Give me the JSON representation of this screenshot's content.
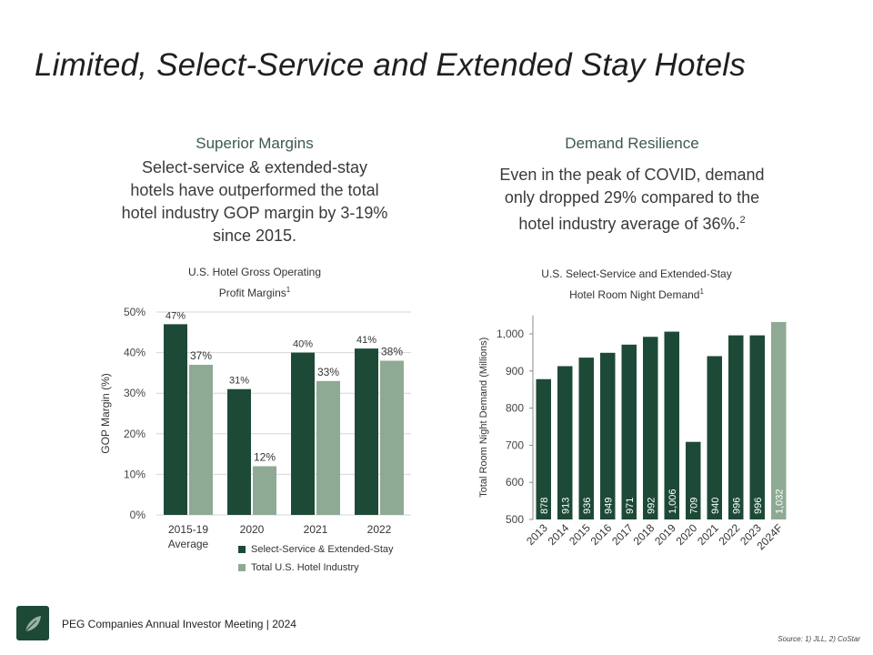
{
  "slide": {
    "title": "Limited, Select-Service and Extended Stay Hotels"
  },
  "left": {
    "heading": "Superior Margins",
    "body": [
      "Select-service & extended-stay",
      "hotels have outperformed the total",
      "hotel industry GOP margin by 3-19%",
      "since 2015."
    ]
  },
  "right": {
    "heading": "Demand Resilience",
    "body": [
      "Even in the peak of COVID, demand",
      "only dropped 29% compared to the",
      "hotel industry average of 36%."
    ],
    "footnote_mark": "2"
  },
  "chart_data": [
    {
      "type": "bar",
      "title_lines": [
        "U.S. Hotel Gross Operating",
        "Profit Margins"
      ],
      "title_footnote": "1",
      "ylabel": "GOP Margin (%)",
      "xlabel": "",
      "ylim": [
        0,
        50
      ],
      "yticks": [
        "0%",
        "10%",
        "20%",
        "30%",
        "40%",
        "50%"
      ],
      "grid": true,
      "categories": [
        [
          "2015-19",
          "Average"
        ],
        [
          "2020"
        ],
        [
          "2021"
        ],
        [
          "2022"
        ]
      ],
      "series": [
        {
          "name": "Select-Service & Extended-Stay",
          "color": "#1d4a37",
          "values": [
            47,
            31,
            40,
            41
          ],
          "labels": [
            "47%",
            "31%",
            "40%",
            "41%"
          ]
        },
        {
          "name": "Total U.S. Hotel Industry",
          "color": "#8faa94",
          "values": [
            37,
            12,
            33,
            38
          ],
          "labels": [
            "37%",
            "12%",
            "33%",
            "38%"
          ]
        }
      ],
      "legend": "bottom"
    },
    {
      "type": "bar",
      "title_lines": [
        "U.S. Select-Service and Extended-Stay",
        "Hotel Room Night Demand"
      ],
      "title_footnote": "1",
      "ylabel": "Total Room Night Demand (Millions)",
      "xlabel": "",
      "ylim": [
        500,
        1050
      ],
      "yticks": [
        "500",
        "600",
        "700",
        "800",
        "900",
        "1,000"
      ],
      "grid": false,
      "categories": [
        "2013",
        "2014",
        "2015",
        "2016",
        "2017",
        "2018",
        "2019",
        "2020",
        "2021",
        "2022",
        "2023",
        "2024F"
      ],
      "values": [
        878,
        913,
        936,
        949,
        971,
        992,
        1006,
        709,
        940,
        996,
        996,
        1032
      ],
      "labels": [
        "878",
        "913",
        "936",
        "949",
        "971",
        "992",
        "1,006",
        "709",
        "940",
        "996",
        "996",
        "1,032"
      ],
      "colors": [
        "#1d4a37",
        "#1d4a37",
        "#1d4a37",
        "#1d4a37",
        "#1d4a37",
        "#1d4a37",
        "#1d4a37",
        "#1d4a37",
        "#1d4a37",
        "#1d4a37",
        "#1d4a37",
        "#8faa94"
      ]
    }
  ],
  "footer": {
    "text": "PEG Companies Annual Investor Meeting | 2024",
    "source": "Source: 1) JLL, 2) CoStar"
  },
  "colors": {
    "dark_green": "#1d4a37",
    "light_green": "#8faa94",
    "heading_green": "#3c5a4b"
  }
}
